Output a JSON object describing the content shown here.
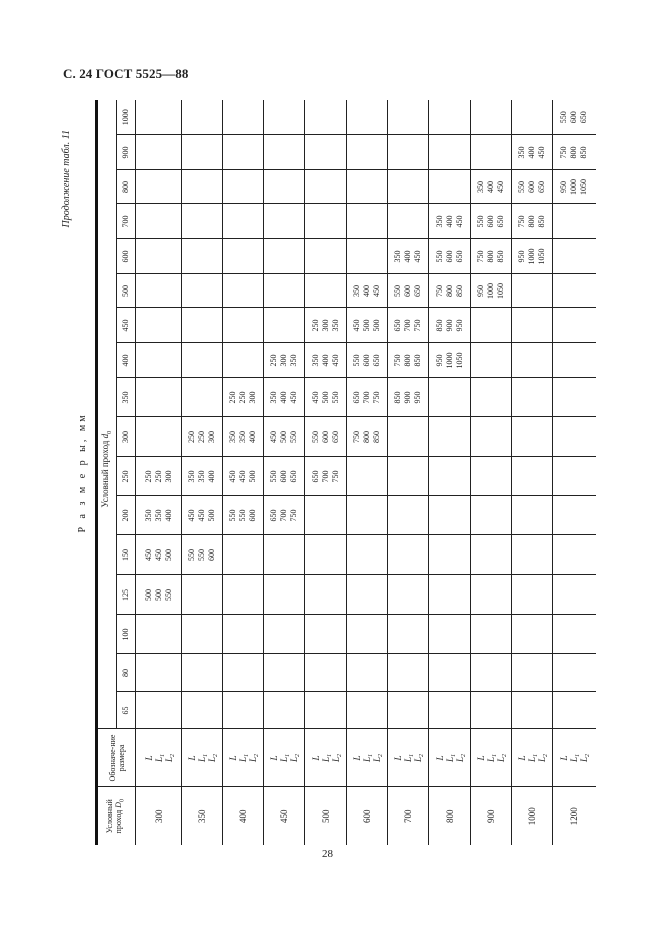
{
  "page": {
    "header": "С. 24 ГОСТ 5525—88",
    "number": "28"
  },
  "continuation": "Продолжение табл. 11",
  "dimensions_caption": "Р а з м е р ы, мм",
  "table": {
    "outer_header": {
      "text": "Условный проход",
      "symbol": "D",
      "sub": "0"
    },
    "designation_header": "Обозначе-ние размера",
    "inner_header": {
      "text": "Условный проход",
      "symbol": "d",
      "sub": "0"
    },
    "columns": [
      "65",
      "80",
      "100",
      "125",
      "150",
      "200",
      "250",
      "300",
      "350",
      "400",
      "450",
      "500",
      "600",
      "700",
      "800",
      "900",
      "1000"
    ],
    "designations": [
      {
        "letter": "L",
        "sub": ""
      },
      {
        "letter": "L",
        "sub": "1"
      },
      {
        "letter": "L",
        "sub": "2"
      }
    ],
    "rows": [
      {
        "D0": "300",
        "cells": [
          null,
          null,
          null,
          [
            "500",
            "500",
            "550"
          ],
          [
            "450",
            "450",
            "500"
          ],
          [
            "350",
            "350",
            "400"
          ],
          [
            "250",
            "250",
            "300"
          ],
          null,
          null,
          null,
          null,
          null,
          null,
          null,
          null,
          null,
          null
        ]
      },
      {
        "D0": "350",
        "cells": [
          null,
          null,
          null,
          null,
          [
            "550",
            "550",
            "600"
          ],
          [
            "450",
            "450",
            "500"
          ],
          [
            "350",
            "350",
            "400"
          ],
          [
            "250",
            "250",
            "300"
          ],
          null,
          null,
          null,
          null,
          null,
          null,
          null,
          null,
          null
        ]
      },
      {
        "D0": "400",
        "cells": [
          null,
          null,
          null,
          null,
          null,
          [
            "550",
            "550",
            "600"
          ],
          [
            "450",
            "450",
            "500"
          ],
          [
            "350",
            "350",
            "400"
          ],
          [
            "250",
            "250",
            "300"
          ],
          null,
          null,
          null,
          null,
          null,
          null,
          null,
          null
        ]
      },
      {
        "D0": "450",
        "cells": [
          null,
          null,
          null,
          null,
          null,
          [
            "650",
            "700",
            "750"
          ],
          [
            "550",
            "600",
            "650"
          ],
          [
            "450",
            "500",
            "550"
          ],
          [
            "350",
            "400",
            "450"
          ],
          [
            "250",
            "300",
            "350"
          ],
          null,
          null,
          null,
          null,
          null,
          null,
          null
        ]
      },
      {
        "D0": "500",
        "cells": [
          null,
          null,
          null,
          null,
          null,
          null,
          [
            "650",
            "700",
            "750"
          ],
          [
            "550",
            "600",
            "650"
          ],
          [
            "450",
            "500",
            "550"
          ],
          [
            "350",
            "400",
            "450"
          ],
          [
            "250",
            "300",
            "350"
          ],
          null,
          null,
          null,
          null,
          null,
          null
        ]
      },
      {
        "D0": "600",
        "cells": [
          null,
          null,
          null,
          null,
          null,
          null,
          null,
          [
            "750",
            "800",
            "850"
          ],
          [
            "650",
            "700",
            "750"
          ],
          [
            "550",
            "600",
            "650"
          ],
          [
            "450",
            "500",
            "500"
          ],
          [
            "350",
            "400",
            "450"
          ],
          null,
          null,
          null,
          null,
          null
        ]
      },
      {
        "D0": "700",
        "cells": [
          null,
          null,
          null,
          null,
          null,
          null,
          null,
          null,
          [
            "850",
            "900",
            "950"
          ],
          [
            "750",
            "800",
            "850"
          ],
          [
            "650",
            "700",
            "750"
          ],
          [
            "550",
            "600",
            "650"
          ],
          [
            "350",
            "400",
            "450"
          ],
          null,
          null,
          null,
          null
        ]
      },
      {
        "D0": "800",
        "cells": [
          null,
          null,
          null,
          null,
          null,
          null,
          null,
          null,
          null,
          [
            "950",
            "1000",
            "1050"
          ],
          [
            "850",
            "900",
            "950"
          ],
          [
            "750",
            "800",
            "850"
          ],
          [
            "550",
            "600",
            "650"
          ],
          [
            "350",
            "400",
            "450"
          ],
          null,
          null,
          null
        ]
      },
      {
        "D0": "900",
        "cells": [
          null,
          null,
          null,
          null,
          null,
          null,
          null,
          null,
          null,
          null,
          null,
          [
            "950",
            "1000",
            "1050"
          ],
          [
            "750",
            "800",
            "850"
          ],
          [
            "550",
            "600",
            "650"
          ],
          [
            "350",
            "400",
            "450"
          ],
          null,
          null
        ]
      },
      {
        "D0": "1000",
        "cells": [
          null,
          null,
          null,
          null,
          null,
          null,
          null,
          null,
          null,
          null,
          null,
          null,
          [
            "950",
            "1000",
            "1050"
          ],
          [
            "750",
            "800",
            "850"
          ],
          [
            "550",
            "600",
            "650"
          ],
          [
            "350",
            "400",
            "450"
          ],
          null
        ]
      },
      {
        "D0": "1200",
        "cells": [
          null,
          null,
          null,
          null,
          null,
          null,
          null,
          null,
          null,
          null,
          null,
          null,
          null,
          null,
          [
            "950",
            "1000",
            "1050"
          ],
          [
            "750",
            "800",
            "850"
          ],
          [
            "550",
            "600",
            "650"
          ]
        ]
      }
    ]
  }
}
